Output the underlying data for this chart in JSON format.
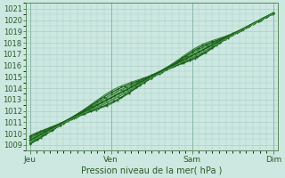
{
  "title": "Pression niveau de la mer( hPa )",
  "x_tick_labels": [
    "Jeu",
    "Ven",
    "Sam",
    "Dim"
  ],
  "x_tick_positions": [
    0,
    96,
    192,
    288
  ],
  "ylim": [
    1008.5,
    1021.5
  ],
  "xlim": [
    -5,
    293
  ],
  "yticks": [
    1009,
    1010,
    1011,
    1012,
    1013,
    1014,
    1015,
    1016,
    1017,
    1018,
    1019,
    1020,
    1021
  ],
  "bg_color": "#cce8e0",
  "grid_color": "#aacfc8",
  "line_color_dark": "#1a5c1a",
  "line_color_mid": "#2a7a2a",
  "line_color_light": "#4a9a4a",
  "text_color": "#2a5c2a",
  "spine_color": "#5a8a5a"
}
